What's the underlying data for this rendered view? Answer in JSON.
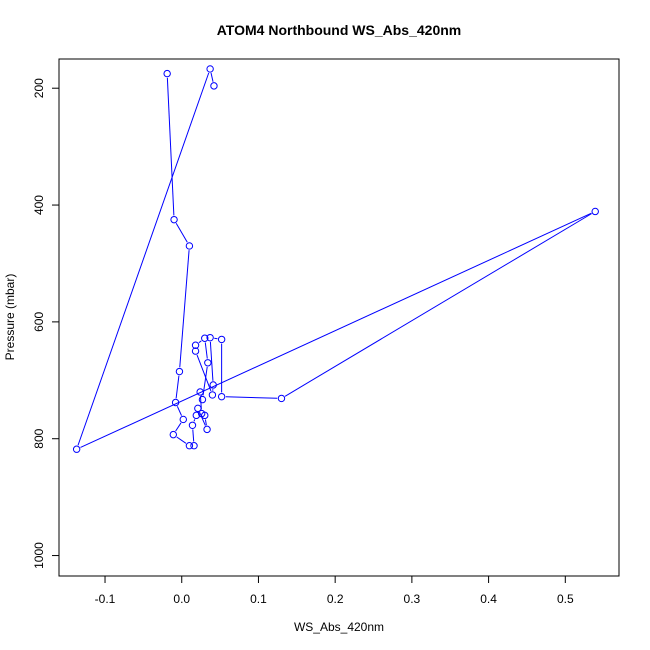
{
  "chart_data": {
    "type": "line",
    "title": "ATOM4 Northbound WS_Abs_420nm",
    "xlabel": "WS_Abs_420nm",
    "ylabel": "Pressure (mbar)",
    "xlim": [
      -0.16,
      0.57
    ],
    "ylim": [
      1035,
      150
    ],
    "y_reversed": true,
    "grid": false,
    "x_ticks": [
      {
        "value": -0.1,
        "label": "-0.1"
      },
      {
        "value": 0.0,
        "label": "0.0"
      },
      {
        "value": 0.1,
        "label": "0.1"
      },
      {
        "value": 0.2,
        "label": "0.2"
      },
      {
        "value": 0.3,
        "label": "0.3"
      },
      {
        "value": 0.4,
        "label": "0.4"
      },
      {
        "value": 0.5,
        "label": "0.5"
      }
    ],
    "y_ticks": [
      {
        "value": 200,
        "label": "200"
      },
      {
        "value": 400,
        "label": "400"
      },
      {
        "value": 600,
        "label": "600"
      },
      {
        "value": 800,
        "label": "800"
      },
      {
        "value": 1000,
        "label": "1000"
      }
    ],
    "series": [
      {
        "color": "#0000ff",
        "points": [
          {
            "x": -0.019,
            "y": 175
          },
          {
            "x": -0.01,
            "y": 425
          },
          {
            "x": 0.01,
            "y": 470
          },
          {
            "x": -0.003,
            "y": 685
          },
          {
            "x": -0.008,
            "y": 738
          },
          {
            "x": 0.002,
            "y": 767
          },
          {
            "x": -0.011,
            "y": 793
          },
          {
            "x": 0.01,
            "y": 812
          },
          {
            "x": 0.016,
            "y": 812
          },
          {
            "x": 0.014,
            "y": 777
          },
          {
            "x": 0.019,
            "y": 760
          },
          {
            "x": 0.021,
            "y": 748
          },
          {
            "x": 0.033,
            "y": 784
          },
          {
            "x": 0.03,
            "y": 760
          },
          {
            "x": 0.026,
            "y": 757
          },
          {
            "x": 0.024,
            "y": 720
          },
          {
            "x": 0.027,
            "y": 733
          },
          {
            "x": 0.034,
            "y": 670
          },
          {
            "x": 0.03,
            "y": 628
          },
          {
            "x": 0.018,
            "y": 640
          },
          {
            "x": 0.018,
            "y": 650
          },
          {
            "x": 0.04,
            "y": 725
          },
          {
            "x": 0.041,
            "y": 708
          },
          {
            "x": 0.037,
            "y": 627
          },
          {
            "x": 0.052,
            "y": 630
          },
          {
            "x": 0.052,
            "y": 728
          },
          {
            "x": 0.13,
            "y": 731
          },
          {
            "x": 0.539,
            "y": 411
          },
          {
            "x": -0.137,
            "y": 818
          },
          {
            "x": 0.037,
            "y": 167
          },
          {
            "x": 0.042,
            "y": 196
          }
        ]
      }
    ]
  }
}
